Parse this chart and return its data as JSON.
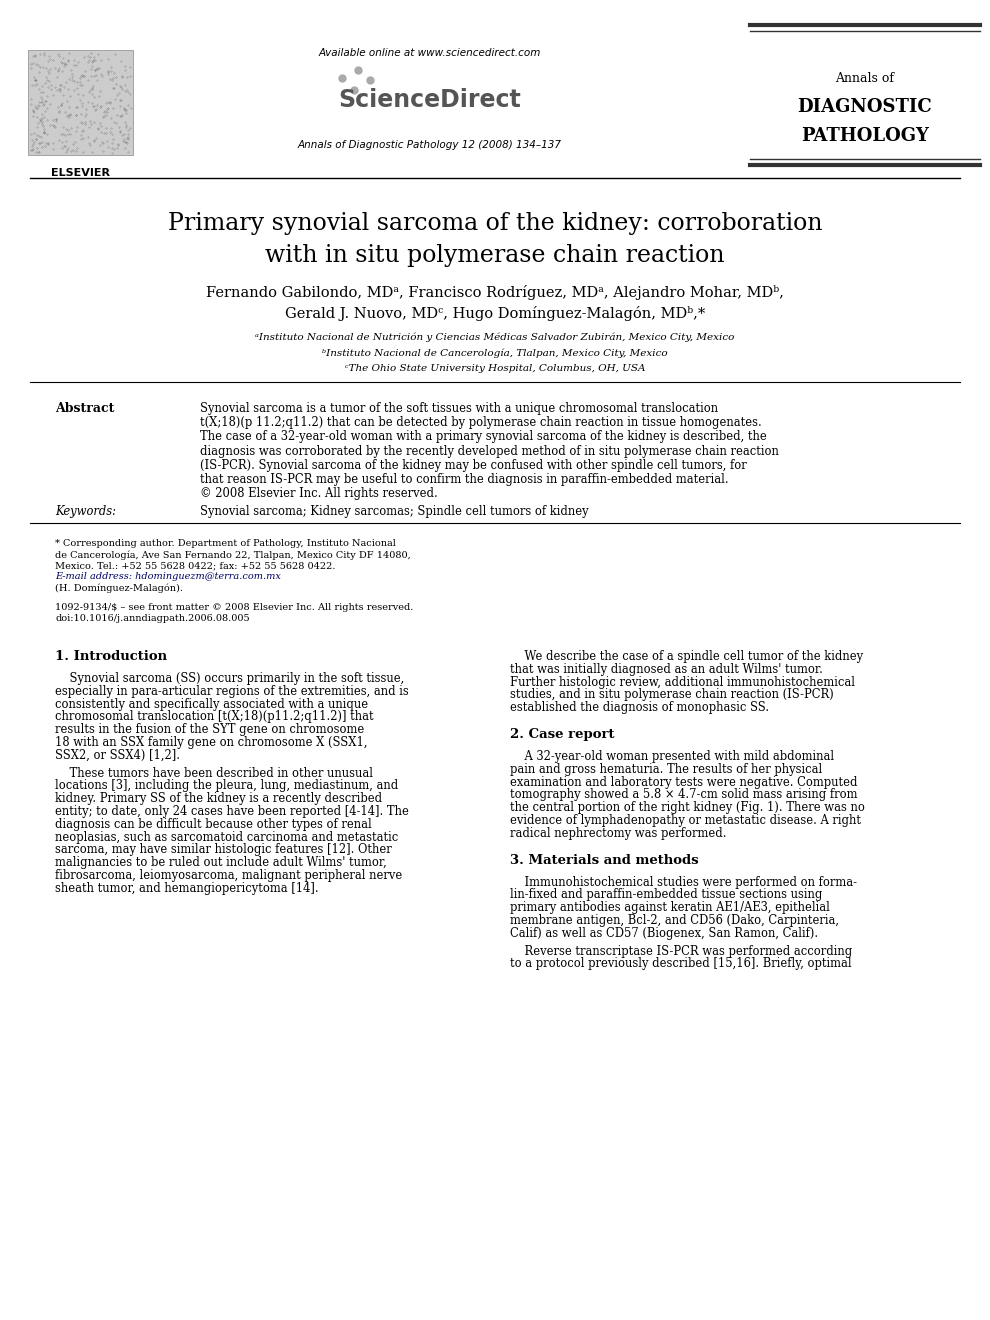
{
  "title_line1": "Primary synovial sarcoma of the kidney: corroboration",
  "title_line2": "with in situ polymerase chain reaction",
  "authors_line1": "Fernando Gabilondo, MDᵃ, Francisco Rodríguez, MDᵃ, Alejandro Mohar, MDᵇ,",
  "authors_line2": "Gerald J. Nuovo, MDᶜ, Hugo Domínguez-Malagón, MDᵇ,*",
  "affil_a": "ᵃInstituto Nacional de Nutrición y Ciencias Médicas Salvador Zubirán, Mexico City, Mexico",
  "affil_b": "ᵇInstituto Nacional de Cancerología, Tlalpan, Mexico City, Mexico",
  "affil_c": "ᶜThe Ohio State University Hospital, Columbus, OH, USA",
  "journal_header": "Annals of Diagnostic Pathology 12 (2008) 134–137",
  "available_online": "Available online at www.sciencedirect.com",
  "journal_name_line1": "Annals of",
  "journal_name_line2": "DIAGNOSTIC",
  "journal_name_line3": "PATHOLOGY",
  "elsevier": "ELSEVIER",
  "abstract_label": "Abstract",
  "abstract_text": "Synovial sarcoma is a tumor of the soft tissues with a unique chromosomal translocation\nt(X;18)(p 11.2;q11.2) that can be detected by polymerase chain reaction in tissue homogenates.\nThe case of a 32-year-old woman with a primary synovial sarcoma of the kidney is described, the\ndiagnosis was corroborated by the recently developed method of in situ polymerase chain reaction\n(IS-PCR). Synovial sarcoma of the kidney may be confused with other spindle cell tumors, for\nthat reason IS-PCR may be useful to confirm the diagnosis in paraffin-embedded material.\n© 2008 Elsevier Inc. All rights reserved.",
  "keywords_label": "Keywords:",
  "keywords_text": "Synovial sarcoma; Kidney sarcomas; Spindle cell tumors of kidney",
  "section1_title": "1. Introduction",
  "section1_col1_para1": "    Synovial sarcoma (SS) occurs primarily in the soft tissue,\nespecially in para-articular regions of the extremities, and is\nconsistently and specifically associated with a unique\nchromosomal translocation [t(X;18)(p11.2;q11.2)] that\nresults in the fusion of the SYT gene on chromosome\n18 with an SSX family gene on chromosome X (SSX1,\nSSX2, or SSX4) [1,2].",
  "section1_col1_para2": "    These tumors have been described in other unusual\nlocations [3], including the pleura, lung, mediastinum, and\nkidney. Primary SS of the kidney is a recently described\nentity; to date, only 24 cases have been reported [4-14]. The\ndiagnosis can be difficult because other types of renal\nneoplasias, such as sarcomatoid carcinoma and metastatic\nsarcoma, may have similar histologic features [12]. Other\nmalignancies to be ruled out include adult Wilms' tumor,\nfibrosarcoma, leiomyosarcoma, malignant peripheral nerve\nsheath tumor, and hemangiopericytoma [14].",
  "section1_col2_para1": "    We describe the case of a spindle cell tumor of the kidney\nthat was initially diagnosed as an adult Wilms' tumor.\nFurther histologic review, additional immunohistochemical\nstudies, and in situ polymerase chain reaction (IS-PCR)\nestablished the diagnosis of monophasic SS.",
  "section2_title": "2. Case report",
  "section2_col2_para1": "    A 32-year-old woman presented with mild abdominal\npain and gross hematuria. The results of her physical\nexamination and laboratory tests were negative. Computed\ntomography showed a 5.8 × 4.7-cm solid mass arising from\nthe central portion of the right kidney (Fig. 1). There was no\nevidence of lymphadenopathy or metastatic disease. A right\nradical nephrectomy was performed.",
  "section3_title": "3. Materials and methods",
  "section3_col2_para1": "    Immunohistochemical studies were performed on forma-\nlin-fixed and paraffin-embedded tissue sections using\nprimary antibodies against keratin AE1/AE3, epithelial\nmembrane antigen, Bcl-2, and CD56 (Dako, Carpinteria,\nCalif) as well as CD57 (Biogenex, San Ramon, Calif).",
  "section3_col2_para2": "    Reverse transcriptase IS-PCR was performed according\nto a protocol previously described [15,16]. Briefly, optimal",
  "footnote_correspond": "* Corresponding author. Department of Pathology, Instituto Nacional\nde Cancerología, Ave San Fernando 22, Tlalpan, Mexico City DF 14080,\nMexico. Tel.: +52 55 5628 0422; fax: +52 55 5628 0422.",
  "footnote_email": "E-mail address: hdominguezm@terra.com.mx",
  "footnote_hdom": "(H. Domínguez-Malagón).",
  "footnote_issn": "1092-9134/$ – see front matter © 2008 Elsevier Inc. All rights reserved.",
  "footnote_doi": "doi:10.1016/j.anndiagpath.2006.08.005",
  "bg_color": "#ffffff",
  "text_color": "#000000",
  "link_color": "#000066"
}
